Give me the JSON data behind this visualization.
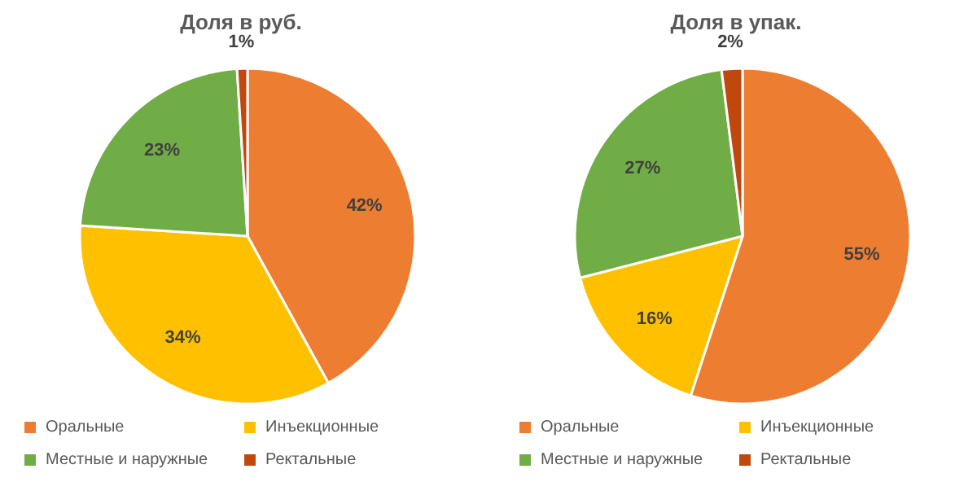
{
  "chart_data": [
    {
      "type": "pie",
      "title": "Доля в руб.",
      "categories": [
        "Оральные",
        "Инъекционные",
        "Местные и наружные",
        "Ректальные"
      ],
      "values": [
        42,
        34,
        23,
        1
      ],
      "value_labels": [
        "42%",
        "34%",
        "23%",
        "1%"
      ],
      "colors": [
        "#ed7d31",
        "#ffc000",
        "#70ad47",
        "#c0480f"
      ],
      "legend": "bottom"
    },
    {
      "type": "pie",
      "title": "Доля в упак.",
      "categories": [
        "Оральные",
        "Инъекционные",
        "Местные и наружные",
        "Ректальные"
      ],
      "values": [
        55,
        16,
        27,
        2
      ],
      "value_labels": [
        "55%",
        "16%",
        "27%",
        "2%"
      ],
      "colors": [
        "#ed7d31",
        "#ffc000",
        "#70ad47",
        "#c0480f"
      ],
      "legend": "bottom"
    }
  ]
}
